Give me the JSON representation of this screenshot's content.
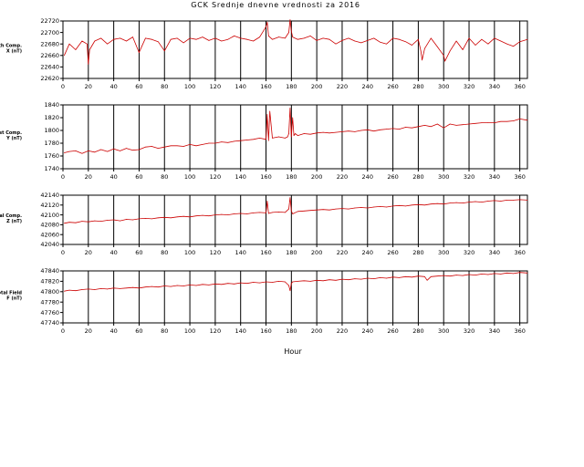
{
  "title": "GCK Srednje dnevne vrednosti za 2016",
  "xlabel": "Hour",
  "colors": {
    "series": "#cc0000",
    "axes": "#000000",
    "background": "#ffffff"
  },
  "chart_data": [
    {
      "type": "line",
      "ylabel": [
        "North Comp.",
        "X (nT)"
      ],
      "xlim": [
        0,
        366
      ],
      "ylim": [
        22620,
        22720
      ],
      "yticks": [
        22620,
        22640,
        22660,
        22680,
        22700,
        22720
      ],
      "xticks": [
        0,
        20,
        40,
        60,
        80,
        100,
        120,
        140,
        160,
        180,
        200,
        220,
        240,
        260,
        280,
        300,
        320,
        340,
        360
      ],
      "vlines": [
        20,
        40,
        60,
        80,
        100,
        120,
        140,
        160,
        180,
        200,
        220,
        240,
        260,
        280,
        300,
        320,
        340,
        360
      ],
      "series": [
        {
          "x": [
            1,
            5,
            10,
            15,
            19,
            20,
            21,
            25,
            30,
            35,
            40,
            45,
            50,
            55,
            60,
            65,
            70,
            75,
            80,
            85,
            90,
            95,
            100,
            105,
            110,
            115,
            120,
            125,
            130,
            135,
            140,
            145,
            150,
            155,
            160,
            161,
            162,
            165,
            170,
            175,
            178,
            179,
            180,
            181,
            185,
            190,
            195,
            200,
            205,
            210,
            215,
            220,
            225,
            230,
            235,
            240,
            245,
            250,
            255,
            260,
            265,
            270,
            275,
            280,
            282,
            283,
            285,
            290,
            295,
            300,
            301,
            305,
            310,
            315,
            320,
            325,
            330,
            335,
            340,
            345,
            350,
            355,
            360,
            366
          ],
          "y": [
            22660,
            22680,
            22670,
            22685,
            22680,
            22645,
            22670,
            22685,
            22690,
            22680,
            22688,
            22690,
            22685,
            22692,
            22665,
            22690,
            22688,
            22684,
            22668,
            22688,
            22690,
            22682,
            22690,
            22688,
            22692,
            22686,
            22690,
            22685,
            22688,
            22694,
            22690,
            22688,
            22685,
            22692,
            22710,
            22718,
            22694,
            22688,
            22692,
            22690,
            22700,
            22722,
            22702,
            22692,
            22688,
            22690,
            22694,
            22686,
            22690,
            22688,
            22680,
            22686,
            22690,
            22685,
            22682,
            22686,
            22690,
            22683,
            22680,
            22690,
            22688,
            22684,
            22678,
            22688,
            22668,
            22652,
            22672,
            22690,
            22675,
            22660,
            22650,
            22668,
            22685,
            22670,
            22690,
            22678,
            22688,
            22680,
            22690,
            22685,
            22680,
            22676,
            22684,
            22688
          ]
        }
      ]
    },
    {
      "type": "line",
      "ylabel": [
        "East Comp.",
        "Y (nT)"
      ],
      "xlim": [
        0,
        366
      ],
      "ylim": [
        1740,
        1840
      ],
      "yticks": [
        1740,
        1760,
        1780,
        1800,
        1820,
        1840
      ],
      "xticks": [
        0,
        20,
        40,
        60,
        80,
        100,
        120,
        140,
        160,
        180,
        200,
        220,
        240,
        260,
        280,
        300,
        320,
        340,
        360
      ],
      "vlines": [
        20,
        40,
        60,
        80,
        100,
        120,
        140,
        160,
        180,
        200,
        220,
        240,
        260,
        280,
        300,
        320,
        340,
        360
      ],
      "series": [
        {
          "x": [
            1,
            5,
            10,
            15,
            20,
            25,
            30,
            35,
            40,
            45,
            50,
            55,
            60,
            65,
            70,
            75,
            80,
            85,
            90,
            95,
            100,
            105,
            110,
            115,
            120,
            125,
            130,
            135,
            140,
            145,
            150,
            155,
            160,
            161,
            162,
            163,
            165,
            170,
            175,
            177,
            178,
            179,
            180,
            181,
            182,
            183,
            185,
            190,
            195,
            200,
            205,
            210,
            215,
            220,
            225,
            230,
            235,
            240,
            245,
            250,
            255,
            260,
            265,
            270,
            275,
            280,
            285,
            290,
            295,
            300,
            305,
            310,
            315,
            320,
            325,
            330,
            335,
            340,
            345,
            350,
            355,
            360,
            366
          ],
          "y": [
            1765,
            1767,
            1768,
            1764,
            1768,
            1766,
            1770,
            1767,
            1771,
            1768,
            1772,
            1769,
            1770,
            1774,
            1775,
            1772,
            1774,
            1776,
            1776,
            1775,
            1778,
            1776,
            1778,
            1780,
            1780,
            1782,
            1781,
            1783,
            1784,
            1785,
            1786,
            1788,
            1786,
            1825,
            1784,
            1830,
            1788,
            1790,
            1788,
            1790,
            1795,
            1835,
            1790,
            1820,
            1792,
            1795,
            1792,
            1795,
            1794,
            1796,
            1797,
            1796,
            1797,
            1798,
            1799,
            1798,
            1800,
            1801,
            1799,
            1801,
            1802,
            1803,
            1802,
            1805,
            1804,
            1806,
            1808,
            1806,
            1810,
            1804,
            1810,
            1808,
            1809,
            1810,
            1811,
            1812,
            1812,
            1812,
            1814,
            1814,
            1815,
            1818,
            1816
          ]
        }
      ]
    },
    {
      "type": "line",
      "ylabel": [
        "Vertical Comp.",
        "Z (nT)"
      ],
      "xlim": [
        0,
        366
      ],
      "ylim": [
        42040,
        42140
      ],
      "yticks": [
        42040,
        42060,
        42080,
        42100,
        42120,
        42140
      ],
      "xticks": [
        0,
        20,
        40,
        60,
        80,
        100,
        120,
        140,
        160,
        180,
        200,
        220,
        240,
        260,
        280,
        300,
        320,
        340,
        360
      ],
      "vlines": [
        20,
        40,
        60,
        80,
        100,
        120,
        140,
        160,
        180,
        200,
        220,
        240,
        260,
        280,
        300,
        320,
        340,
        360
      ],
      "series": [
        {
          "x": [
            1,
            5,
            10,
            15,
            20,
            25,
            30,
            35,
            40,
            45,
            50,
            55,
            60,
            65,
            70,
            75,
            80,
            85,
            90,
            95,
            100,
            105,
            110,
            115,
            120,
            125,
            130,
            135,
            140,
            145,
            150,
            155,
            160,
            161,
            162,
            165,
            170,
            175,
            178,
            179,
            180,
            181,
            185,
            190,
            195,
            200,
            205,
            210,
            215,
            220,
            225,
            230,
            235,
            240,
            245,
            250,
            255,
            260,
            265,
            270,
            275,
            280,
            285,
            290,
            295,
            300,
            305,
            310,
            315,
            320,
            325,
            330,
            335,
            340,
            345,
            350,
            355,
            360,
            366
          ],
          "y": [
            42083,
            42085,
            42084,
            42087,
            42086,
            42088,
            42087,
            42089,
            42090,
            42088,
            42091,
            42090,
            42092,
            42093,
            42092,
            42094,
            42095,
            42094,
            42096,
            42097,
            42096,
            42098,
            42099,
            42098,
            42100,
            42101,
            42100,
            42102,
            42103,
            42102,
            42104,
            42105,
            42104,
            42128,
            42103,
            42105,
            42106,
            42105,
            42112,
            42135,
            42108,
            42102,
            42107,
            42108,
            42109,
            42110,
            42111,
            42110,
            42112,
            42113,
            42112,
            42114,
            42115,
            42114,
            42116,
            42117,
            42116,
            42118,
            42119,
            42118,
            42120,
            42121,
            42120,
            42122,
            42123,
            42122,
            42124,
            42125,
            42124,
            42126,
            42127,
            42126,
            42128,
            42129,
            42128,
            42130,
            42130,
            42131,
            42130
          ]
        }
      ]
    },
    {
      "type": "line",
      "ylabel": [
        "Total Field",
        "F (nT)"
      ],
      "xlim": [
        0,
        366
      ],
      "ylim": [
        47740,
        47840
      ],
      "yticks": [
        47740,
        47760,
        47780,
        47800,
        47820,
        47840
      ],
      "xticks": [
        0,
        20,
        40,
        60,
        80,
        100,
        120,
        140,
        160,
        180,
        200,
        220,
        240,
        260,
        280,
        300,
        320,
        340,
        360
      ],
      "vlines": [
        20,
        40,
        60,
        80,
        100,
        120,
        140,
        160,
        180,
        200,
        220,
        240,
        260,
        280,
        300,
        320,
        340,
        360
      ],
      "series": [
        {
          "x": [
            1,
            5,
            10,
            15,
            20,
            25,
            30,
            35,
            40,
            45,
            50,
            55,
            60,
            65,
            70,
            75,
            80,
            85,
            90,
            95,
            100,
            105,
            110,
            115,
            120,
            125,
            130,
            135,
            140,
            145,
            150,
            155,
            160,
            165,
            170,
            175,
            178,
            179,
            180,
            181,
            185,
            190,
            195,
            200,
            205,
            210,
            215,
            220,
            225,
            230,
            235,
            240,
            245,
            250,
            255,
            260,
            265,
            270,
            275,
            280,
            285,
            287,
            290,
            295,
            300,
            305,
            310,
            315,
            320,
            325,
            330,
            335,
            340,
            345,
            350,
            355,
            360,
            366
          ],
          "y": [
            47801,
            47803,
            47802,
            47804,
            47805,
            47804,
            47806,
            47805,
            47807,
            47806,
            47807,
            47808,
            47807,
            47809,
            47810,
            47809,
            47811,
            47810,
            47812,
            47811,
            47813,
            47812,
            47814,
            47813,
            47815,
            47814,
            47816,
            47815,
            47817,
            47816,
            47818,
            47817,
            47819,
            47818,
            47820,
            47819,
            47812,
            47802,
            47816,
            47819,
            47820,
            47821,
            47820,
            47822,
            47821,
            47823,
            47822,
            47824,
            47823,
            47825,
            47824,
            47826,
            47825,
            47827,
            47826,
            47828,
            47827,
            47829,
            47828,
            47830,
            47829,
            47822,
            47829,
            47830,
            47831,
            47830,
            47832,
            47831,
            47833,
            47832,
            47834,
            47833,
            47835,
            47834,
            47836,
            47835,
            47837,
            47836
          ]
        }
      ]
    }
  ]
}
